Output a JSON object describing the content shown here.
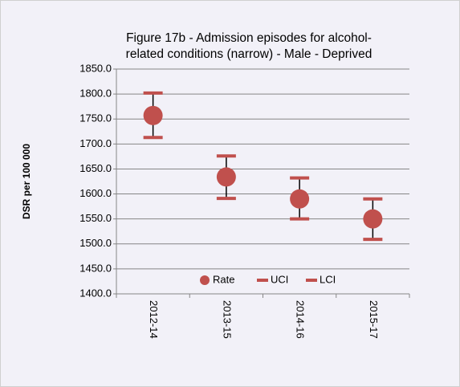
{
  "chart_data": {
    "type": "dot-errorbar",
    "title": [
      "Figure 17b - Admission episodes for alcohol-",
      "related conditions (narrow) - Male - Deprived"
    ],
    "y_label": "DSR per 100 000",
    "categories": [
      "2012-14",
      "2013-15",
      "2014-16",
      "2015-17"
    ],
    "series": [
      {
        "name": "Rate",
        "color": "#c0504d",
        "values": [
          1757,
          1634,
          1590,
          1550
        ]
      },
      {
        "name": "UCI",
        "color": "#c0504d",
        "values": [
          1802,
          1676,
          1632,
          1590
        ]
      },
      {
        "name": "LCI",
        "color": "#c0504d",
        "values": [
          1713,
          1591,
          1550,
          1509
        ]
      }
    ],
    "ylim": [
      1400,
      1850
    ],
    "yticks": [
      {
        "value": 1400,
        "label": "1400.0"
      },
      {
        "value": 1450,
        "label": "1450.0"
      },
      {
        "value": 1500,
        "label": "1500.0"
      },
      {
        "value": 1550,
        "label": "1550.0"
      },
      {
        "value": 1600,
        "label": "1600.0"
      },
      {
        "value": 1650,
        "label": "1650.0"
      },
      {
        "value": 1700,
        "label": "1700.0"
      },
      {
        "value": 1750,
        "label": "1750.0"
      },
      {
        "value": 1800,
        "label": "1800.0"
      },
      {
        "value": 1850,
        "label": "1850.0"
      }
    ],
    "grid": true
  }
}
